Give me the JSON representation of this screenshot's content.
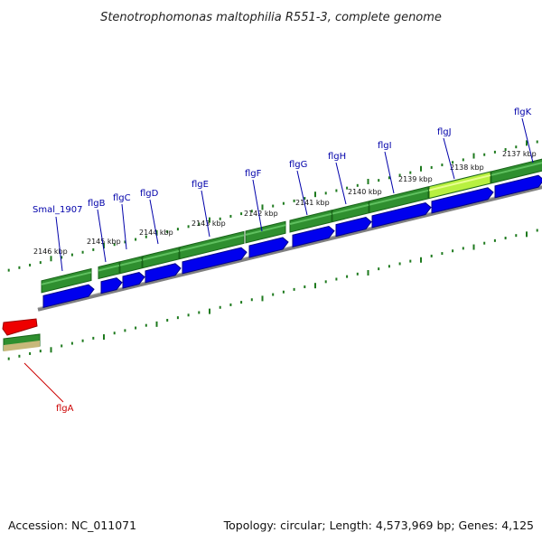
{
  "title": "Stenotrophomonas maltophilia R551-3, complete genome",
  "footer": {
    "accession": "Accession: NC_011071",
    "summary": "Topology: circular; Length: 4,573,969 bp; Genes: 4,125"
  },
  "colors": {
    "cds": "#0000ee",
    "cds_dark": "#00008a",
    "gene_band": "#2f8f2f",
    "gene_band_dark": "#186418",
    "highlight_band": "#b8f040",
    "selected": "#ee0000",
    "tick": "#1e7a1e",
    "backbone": "#808080",
    "label_blue": "#0000aa",
    "label_red": "#cc0000",
    "rna_band": "#c8b87a"
  },
  "position_labels": [
    "2146 kbp",
    "2145 kbp",
    "2144 kbp",
    "2143 kbp",
    "2142 kbp",
    "2141 kbp",
    "2140 kbp",
    "2139 kbp",
    "2138 kbp",
    "2137 kbp"
  ],
  "genes": [
    {
      "name": "Smal_1907",
      "color": "label_blue"
    },
    {
      "name": "flgB",
      "color": "label_blue"
    },
    {
      "name": "flgC",
      "color": "label_blue"
    },
    {
      "name": "flgD",
      "color": "label_blue"
    },
    {
      "name": "flgE",
      "color": "label_blue"
    },
    {
      "name": "flgF",
      "color": "label_blue"
    },
    {
      "name": "flgG",
      "color": "label_blue"
    },
    {
      "name": "flgH",
      "color": "label_blue"
    },
    {
      "name": "flgI",
      "color": "label_blue"
    },
    {
      "name": "flgJ",
      "color": "label_blue"
    },
    {
      "name": "flgK",
      "color": "label_blue"
    },
    {
      "name": "flgA",
      "color": "label_red"
    }
  ]
}
